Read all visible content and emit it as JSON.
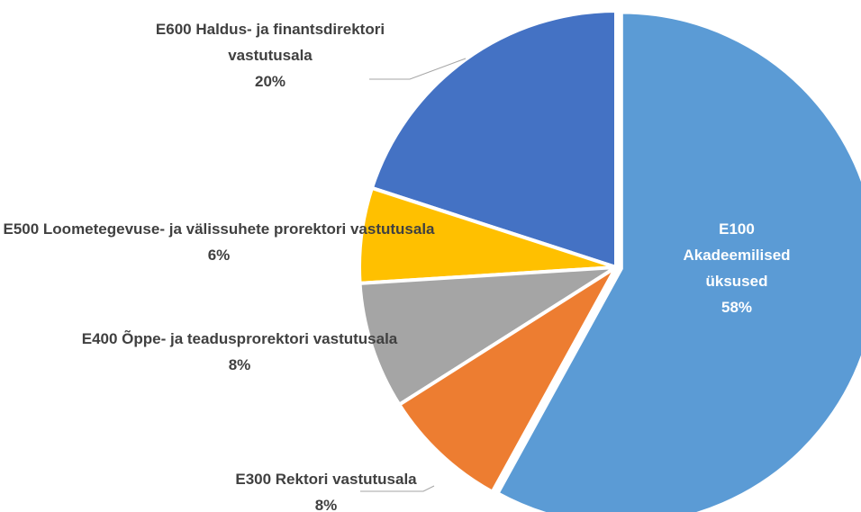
{
  "chart_data": {
    "type": "pie",
    "categories": [
      "E100 Akadeemilised üksused",
      "E300 Rektori vastutusala",
      "E400 Õppe- ja teadusprorektori vastutusala",
      "E500 Loometegevuse- ja välissuhete prorektori vastutusala",
      "E600 Haldus- ja finantsdirektori vastutusala"
    ],
    "values": [
      58,
      8,
      8,
      6,
      20
    ],
    "value_labels": [
      "58%",
      "8%",
      "8%",
      "6%",
      "20%"
    ],
    "colors": [
      "#5b9bd5",
      "#ed7d31",
      "#a5a5a5",
      "#ffc000",
      "#4472c4"
    ]
  }
}
